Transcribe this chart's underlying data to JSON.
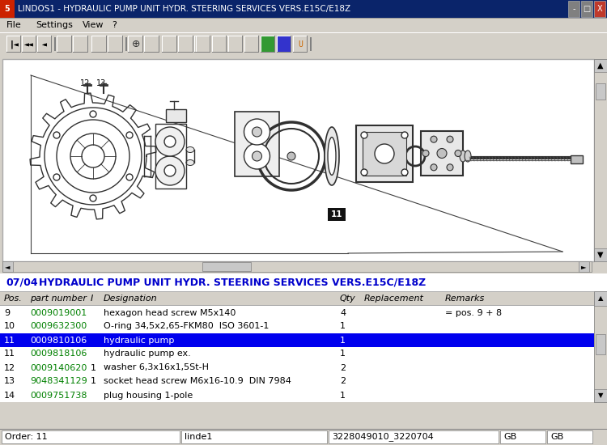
{
  "title_bar": "LINDOS1 - HYDRAULIC PUMP UNIT HYDR. STEERING SERVICES VERS.E15C/E18Z",
  "menu_items": [
    "File",
    "Settings",
    "View",
    "?"
  ],
  "section_header_num": "07/04",
  "section_header_text": "   HYDRAULIC PUMP UNIT HYDR. STEERING SERVICES VERS.E15C/E18Z",
  "col_headers": [
    "Pos.",
    "part number",
    "I",
    "Designation",
    "Qty",
    "Replacement",
    "Remarks"
  ],
  "rows": [
    {
      "pos": "9",
      "part": "0009019001",
      "i": "",
      "desc": "hexagon head screw M5x140",
      "qty": "4",
      "repl": "",
      "rem": "= pos. 9 + 8",
      "highlighted": false
    },
    {
      "pos": "10",
      "part": "0009632300",
      "i": "",
      "desc": "O-ring 34,5x2,65-FKM80  ISO 3601-1",
      "qty": "1",
      "repl": "",
      "rem": "",
      "highlighted": false
    },
    {
      "pos": "11",
      "part": "0009810106",
      "i": "",
      "desc": "hydraulic pump",
      "qty": "1",
      "repl": "",
      "rem": "",
      "highlighted": true
    },
    {
      "pos": "11",
      "part": "0009818106",
      "i": "",
      "desc": "hydraulic pump ex.",
      "qty": "1",
      "repl": "",
      "rem": "",
      "highlighted": false
    },
    {
      "pos": "12",
      "part": "0009140620",
      "i": "1",
      "desc": "washer 6,3x16x1,5St-H",
      "qty": "2",
      "repl": "",
      "rem": "",
      "highlighted": false
    },
    {
      "pos": "13",
      "part": "9048341129",
      "i": "1",
      "desc": "socket head screw M6x16-10.9  DIN 7984",
      "qty": "2",
      "repl": "",
      "rem": "",
      "highlighted": false
    },
    {
      "pos": "14",
      "part": "0009751738",
      "i": "",
      "desc": "plug housing 1-pole",
      "qty": "1",
      "repl": "",
      "rem": "",
      "highlighted": false
    }
  ],
  "status_left": "Order: 11",
  "status_mid": "linde1",
  "status_right": "3228049010_3220704",
  "status_gb1": "GB",
  "status_gb2": "GB",
  "bg_color": "#d4d0c8",
  "title_bg": "#0a246a",
  "highlight_bg": "#0000ee",
  "highlight_text": "#ffffff",
  "part_color": "#008000",
  "section_num_color": "#0000cc",
  "section_text_color": "#0000cc",
  "line_color": "#303030"
}
